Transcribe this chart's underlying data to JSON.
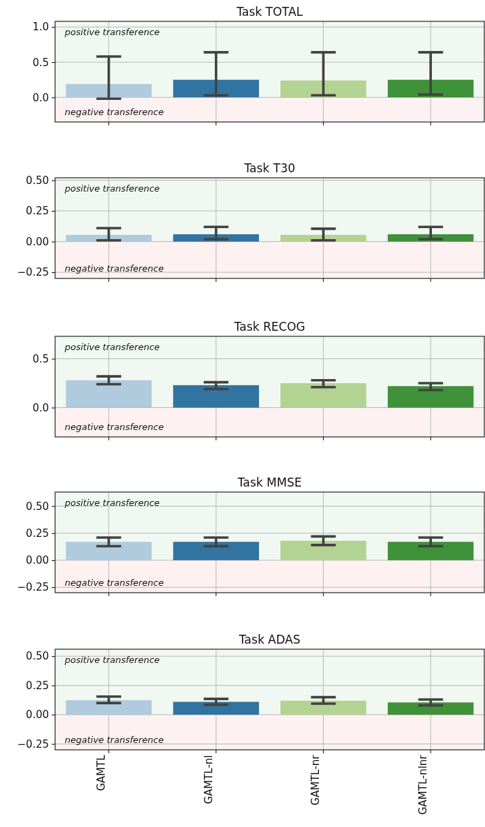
{
  "chart_data": [
    {
      "type": "bar",
      "title": "Task TOTAL",
      "categories": [
        null,
        null,
        null,
        null
      ],
      "values": [
        0.19,
        0.25,
        0.24,
        0.25
      ],
      "colors": [
        "#afcbdd",
        "#3274a1",
        "#b3d393",
        "#3f913a"
      ],
      "errors": [
        [
          -0.02,
          0.58
        ],
        [
          0.03,
          0.64
        ],
        [
          0.03,
          0.64
        ],
        [
          0.04,
          0.64
        ]
      ],
      "ylim": [
        -0.35,
        1.08
      ],
      "yticks": [
        {
          "value": 0,
          "label": "0.0"
        },
        {
          "value": 0.5,
          "label": "0.5"
        },
        {
          "value": 1,
          "label": "1.0"
        }
      ],
      "grid": true,
      "tick_labels": "y",
      "bands": [
        {
          "axis": "y",
          "from": 0,
          "to": 1.08,
          "label": "positive transference",
          "color": "#f1f8f1"
        },
        {
          "axis": "y",
          "from": -0.35,
          "to": 0,
          "label": "negative transference",
          "color": "#fdf1f1"
        }
      ]
    },
    {
      "type": "bar",
      "title": "Task T30",
      "categories": [
        null,
        null,
        null,
        null
      ],
      "values": [
        0.055,
        0.06,
        0.055,
        0.06
      ],
      "colors": [
        "#afcbdd",
        "#3274a1",
        "#b3d393",
        "#3f913a"
      ],
      "errors": [
        [
          0.01,
          0.11
        ],
        [
          0.02,
          0.12
        ],
        [
          0.01,
          0.105
        ],
        [
          0.02,
          0.12
        ]
      ],
      "ylim": [
        -0.3,
        0.52
      ],
      "yticks": [
        {
          "value": -0.25,
          "label": "−0.25"
        },
        {
          "value": 0,
          "label": "0.00"
        },
        {
          "value": 0.25,
          "label": "0.25"
        },
        {
          "value": 0.5,
          "label": "0.50"
        }
      ],
      "grid": true,
      "tick_labels": "y",
      "bands": [
        {
          "axis": "y",
          "from": 0,
          "to": 0.52,
          "label": "positive transference",
          "color": "#f1f8f1"
        },
        {
          "axis": "y",
          "from": -0.3,
          "to": 0,
          "label": "negative transference",
          "color": "#fdf1f1"
        }
      ]
    },
    {
      "type": "bar",
      "title": "Task RECOG",
      "categories": [
        null,
        null,
        null,
        null
      ],
      "values": [
        0.28,
        0.23,
        0.25,
        0.22
      ],
      "colors": [
        "#afcbdd",
        "#3274a1",
        "#b3d393",
        "#3f913a"
      ],
      "errors": [
        [
          0.24,
          0.32
        ],
        [
          0.19,
          0.26
        ],
        [
          0.21,
          0.28
        ],
        [
          0.18,
          0.25
        ]
      ],
      "ylim": [
        -0.3,
        0.73
      ],
      "yticks": [
        {
          "value": 0,
          "label": "0.0"
        },
        {
          "value": 0.5,
          "label": "0.5"
        }
      ],
      "grid": true,
      "tick_labels": "y",
      "bands": [
        {
          "axis": "y",
          "from": 0,
          "to": 0.73,
          "label": "positive transference",
          "color": "#f1f8f1"
        },
        {
          "axis": "y",
          "from": -0.3,
          "to": 0,
          "label": "negative transference",
          "color": "#fdf1f1"
        }
      ]
    },
    {
      "type": "bar",
      "title": "Task MMSE",
      "categories": [
        null,
        null,
        null,
        null
      ],
      "values": [
        0.17,
        0.17,
        0.18,
        0.17
      ],
      "colors": [
        "#afcbdd",
        "#3274a1",
        "#b3d393",
        "#3f913a"
      ],
      "errors": [
        [
          0.13,
          0.21
        ],
        [
          0.13,
          0.21
        ],
        [
          0.14,
          0.22
        ],
        [
          0.13,
          0.21
        ]
      ],
      "ylim": [
        -0.3,
        0.63
      ],
      "yticks": [
        {
          "value": -0.25,
          "label": "−0.25"
        },
        {
          "value": 0,
          "label": "0.00"
        },
        {
          "value": 0.25,
          "label": "0.25"
        },
        {
          "value": 0.5,
          "label": "0.50"
        }
      ],
      "grid": true,
      "tick_labels": "y",
      "bands": [
        {
          "axis": "y",
          "from": 0,
          "to": 0.63,
          "label": "positive transference",
          "color": "#f1f8f1"
        },
        {
          "axis": "y",
          "from": -0.3,
          "to": 0,
          "label": "negative transference",
          "color": "#fdf1f1"
        }
      ]
    },
    {
      "type": "bar",
      "title": "Task ADAS",
      "categories": [
        "GAMTL",
        "GAMTL-nl",
        "GAMTL-nr",
        "GAMTL-nlnr"
      ],
      "values": [
        0.125,
        0.11,
        0.12,
        0.105
      ],
      "colors": [
        "#afcbdd",
        "#3274a1",
        "#b3d393",
        "#3f913a"
      ],
      "errors": [
        [
          0.1,
          0.155
        ],
        [
          0.085,
          0.135
        ],
        [
          0.095,
          0.15
        ],
        [
          0.08,
          0.13
        ]
      ],
      "ylim": [
        -0.3,
        0.56
      ],
      "yticks": [
        {
          "value": -0.25,
          "label": "−0.25"
        },
        {
          "value": 0,
          "label": "0.00"
        },
        {
          "value": 0.25,
          "label": "0.25"
        },
        {
          "value": 0.5,
          "label": "0.50"
        }
      ],
      "grid": true,
      "bands": [
        {
          "axis": "y",
          "from": 0,
          "to": 0.56,
          "label": "positive transference",
          "color": "#f1f8f1"
        },
        {
          "axis": "y",
          "from": -0.3,
          "to": 0,
          "label": "negative transference",
          "color": "#fdf1f1"
        }
      ]
    }
  ]
}
